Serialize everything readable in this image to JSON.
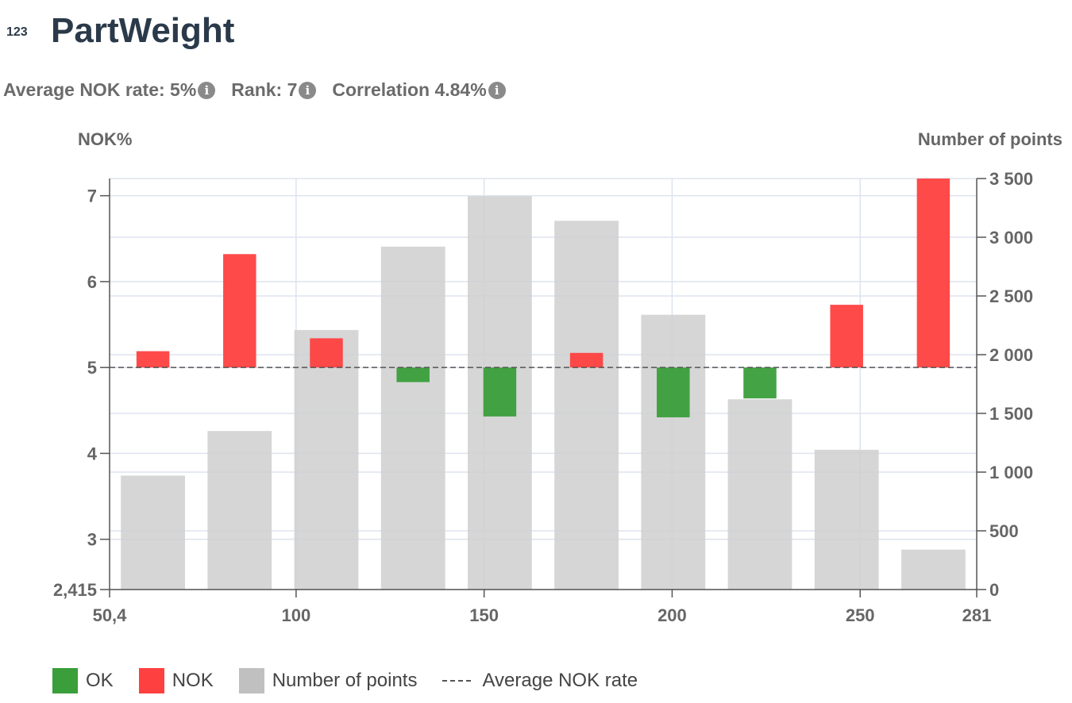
{
  "header": {
    "type_badge": "123",
    "title": "PartWeight",
    "stats": [
      {
        "label": "Average NOK rate: 5%"
      },
      {
        "label": "Rank: 7"
      },
      {
        "label": "Correlation 4.84%"
      }
    ]
  },
  "chart_data": {
    "type": "bar",
    "title": "PartWeight",
    "left_axis": {
      "title": "NOK%",
      "range": [
        2.415,
        7.2
      ],
      "ticks": [
        3,
        4,
        5,
        6,
        7
      ],
      "tick_labels": [
        "3",
        "4",
        "5",
        "6",
        "7"
      ],
      "min_label": "2,415"
    },
    "right_axis": {
      "title": "Number of points",
      "range": [
        0,
        3500
      ],
      "ticks": [
        0,
        500,
        1000,
        1500,
        2000,
        2500,
        3000,
        3500
      ],
      "tick_labels": [
        "0",
        "500",
        "1 000",
        "1 500",
        "2 000",
        "2 500",
        "3 000",
        "3 500"
      ]
    },
    "x_axis": {
      "range": [
        50.4,
        281
      ],
      "ticks": [
        100,
        150,
        200,
        250
      ],
      "tick_labels": [
        "100",
        "150",
        "200",
        "250"
      ],
      "min_label": "50,4",
      "max_label": "281"
    },
    "bins": [
      {
        "x_start": 50.4,
        "x_end": 73.46,
        "points": 970,
        "nok_rate": 5.19
      },
      {
        "x_start": 73.46,
        "x_end": 96.52,
        "points": 1350,
        "nok_rate": 6.32
      },
      {
        "x_start": 96.52,
        "x_end": 119.58,
        "points": 2210,
        "nok_rate": 5.34
      },
      {
        "x_start": 119.58,
        "x_end": 142.64,
        "points": 2920,
        "nok_rate": 4.83
      },
      {
        "x_start": 142.64,
        "x_end": 165.7,
        "points": 3350,
        "nok_rate": 4.43
      },
      {
        "x_start": 165.7,
        "x_end": 188.76,
        "points": 3140,
        "nok_rate": 5.17
      },
      {
        "x_start": 188.76,
        "x_end": 211.82,
        "points": 2340,
        "nok_rate": 4.42
      },
      {
        "x_start": 211.82,
        "x_end": 234.88,
        "points": 1620,
        "nok_rate": 4.64
      },
      {
        "x_start": 234.88,
        "x_end": 257.94,
        "points": 1190,
        "nok_rate": 5.73
      },
      {
        "x_start": 257.94,
        "x_end": 281.0,
        "points": 340,
        "nok_rate": 7.2
      }
    ],
    "average_nok_rate": 5,
    "colors": {
      "ok": "#3a9e3a",
      "nok": "#ff4040",
      "points": "#cfcfcf",
      "grid": "#dde3ee",
      "axis": "#555555"
    },
    "legend": [
      {
        "name": "OK",
        "color": "#3a9e3a"
      },
      {
        "name": "NOK",
        "color": "#ff4040"
      },
      {
        "name": "Number of points",
        "color": "#c0c0c0"
      },
      {
        "name": "Average NOK rate",
        "style": "dashed"
      }
    ]
  }
}
